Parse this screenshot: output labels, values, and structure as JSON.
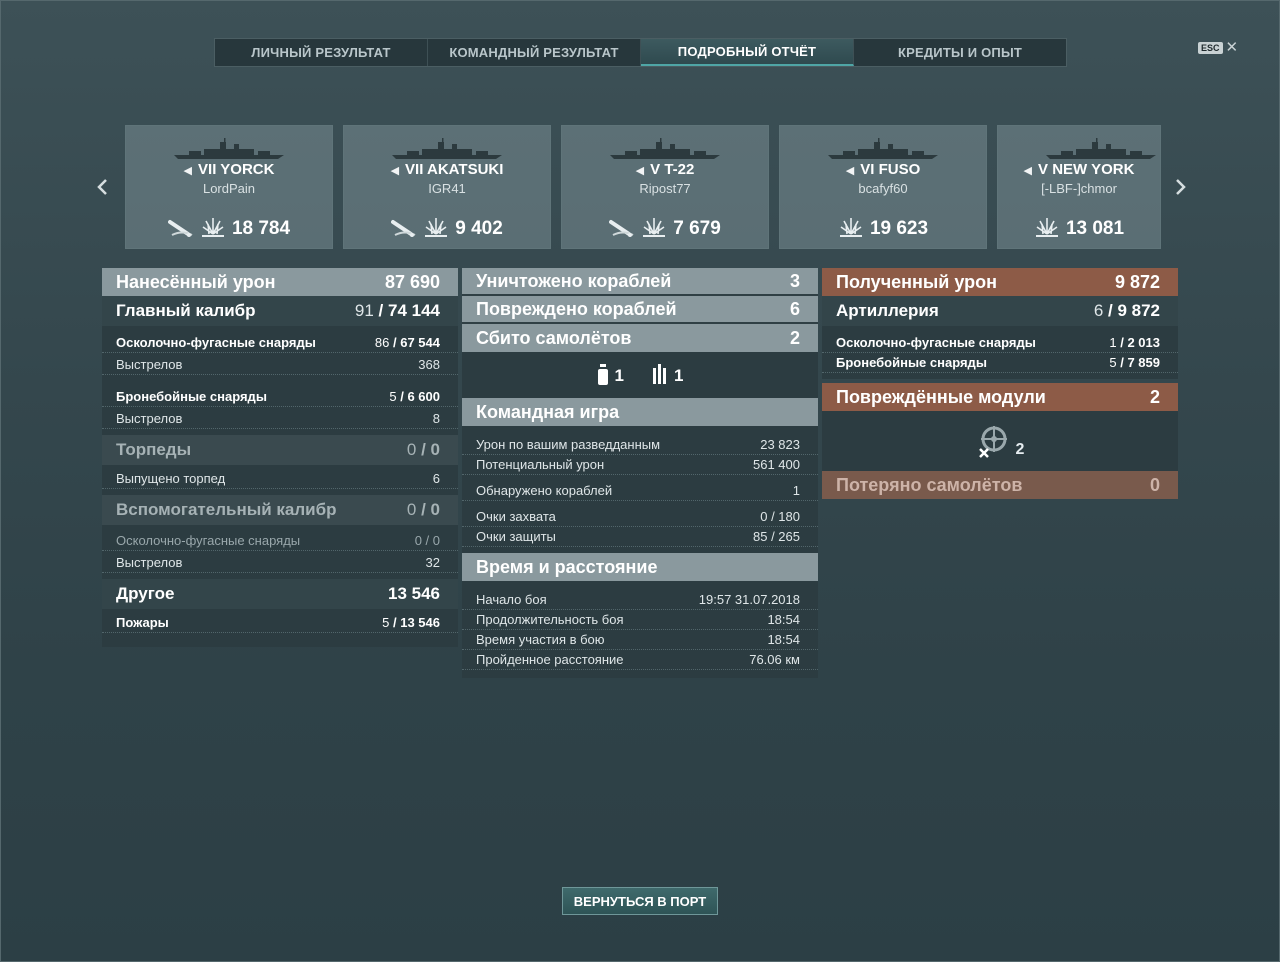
{
  "tabs": [
    {
      "label": "ЛИЧНЫЙ РЕЗУЛЬТАТ"
    },
    {
      "label": "КОМАНДНЫЙ РЕЗУЛЬТАТ"
    },
    {
      "label": "ПОДРОБНЫЙ ОТЧЁТ"
    },
    {
      "label": "КРЕДИТЫ И ОПЫТ"
    }
  ],
  "active_tab": "ПОДРОБНЫЙ ОТЧЁТ",
  "esc_label": "ESC",
  "ships": [
    {
      "tier": "VII",
      "name": "YORCK",
      "player": "LordPain",
      "damage": "18 784",
      "icons": [
        "torpedo-hit-icon",
        "fire-damage-icon"
      ]
    },
    {
      "tier": "VII",
      "name": "AKATSUKI",
      "player": "IGR41",
      "damage": "9 402",
      "icons": [
        "torpedo-hit-icon",
        "fire-damage-icon"
      ]
    },
    {
      "tier": "V",
      "name": "T-22",
      "player": "Ripost77",
      "damage": "7 679",
      "icons": [
        "torpedo-hit-icon",
        "fire-damage-icon"
      ]
    },
    {
      "tier": "VI",
      "name": "FUSO",
      "player": "bcafyf60",
      "damage": "19 623",
      "icons": [
        "fire-damage-icon"
      ]
    },
    {
      "tier": "V",
      "name": "NEW YORK",
      "player": "[-LBF-]chmor",
      "damage": "13 081",
      "icons": [
        "fire-damage-icon"
      ]
    }
  ],
  "dealt": {
    "title": "Нанесённый урон",
    "total": "87 690",
    "main": {
      "label": "Главный калибр",
      "hits": "91",
      "dmg": "74 144"
    },
    "main_he": {
      "label": "Осколочно-фугасные снаряды",
      "hits": "86",
      "dmg": "67 544"
    },
    "main_he_shots": {
      "label": "Выстрелов",
      "value": "368"
    },
    "main_ap": {
      "label": "Бронебойные снаряды",
      "hits": "5",
      "dmg": "6 600"
    },
    "main_ap_shots": {
      "label": "Выстрелов",
      "value": "8"
    },
    "torp": {
      "label": "Торпеды",
      "hits": "0",
      "dmg": "0"
    },
    "torp_fired": {
      "label": "Выпущено торпед",
      "value": "6"
    },
    "sec": {
      "label": "Вспомогательный калибр",
      "hits": "0",
      "dmg": "0"
    },
    "sec_he": {
      "label": "Осколочно-фугасные снаряды",
      "hits": "0",
      "dmg": "0"
    },
    "sec_shots": {
      "label": "Выстрелов",
      "value": "32"
    },
    "other": {
      "label": "Другое",
      "value": "13 546"
    },
    "fires": {
      "label": "Пожары",
      "hits": "5",
      "dmg": "13 546"
    }
  },
  "center": {
    "destroyed": {
      "label": "Уничтожено кораблей",
      "value": "3"
    },
    "damaged": {
      "label": "Повреждено кораблей",
      "value": "6"
    },
    "planes": {
      "label": "Сбито самолётов",
      "value": "2"
    },
    "plane_counts": {
      "fighter": "1",
      "bomber": "1"
    },
    "team": {
      "title": "Командная игра",
      "spotting_dmg": {
        "label": "Урон по вашим разведданным",
        "value": "23 823"
      },
      "potential": {
        "label": "Потенциальный урон",
        "value": "561 400"
      },
      "spotted": {
        "label": "Обнаружено кораблей",
        "value": "1"
      },
      "capture": {
        "label": "Очки захвата",
        "value": "0 / 180"
      },
      "defense": {
        "label": "Очки защиты",
        "value": "85 / 265"
      }
    },
    "time": {
      "title": "Время и расстояние",
      "start": {
        "label": "Начало боя",
        "value": "19:57  31.07.2018"
      },
      "duration": {
        "label": "Продолжительность боя",
        "value": "18:54"
      },
      "participation": {
        "label": "Время участия в бою",
        "value": "18:54"
      },
      "distance": {
        "label": "Пройденное расстояние",
        "value": "76.06 км"
      }
    }
  },
  "received": {
    "title": "Полученный урон",
    "total": "9 872",
    "art": {
      "label": "Артиллерия",
      "hits": "6",
      "dmg": "9 872"
    },
    "he": {
      "label": "Осколочно-фугасные снаряды",
      "hits": "1",
      "dmg": "2 013"
    },
    "ap": {
      "label": "Бронебойные снаряды",
      "hits": "5",
      "dmg": "7 859"
    },
    "modules": {
      "label": "Повреждённые модули",
      "value": "2",
      "count": "2"
    },
    "planes_lost": {
      "label": "Потеряно самолётов",
      "value": "0"
    }
  },
  "back_button": "ВЕРНУТЬСЯ В ПОРТ"
}
